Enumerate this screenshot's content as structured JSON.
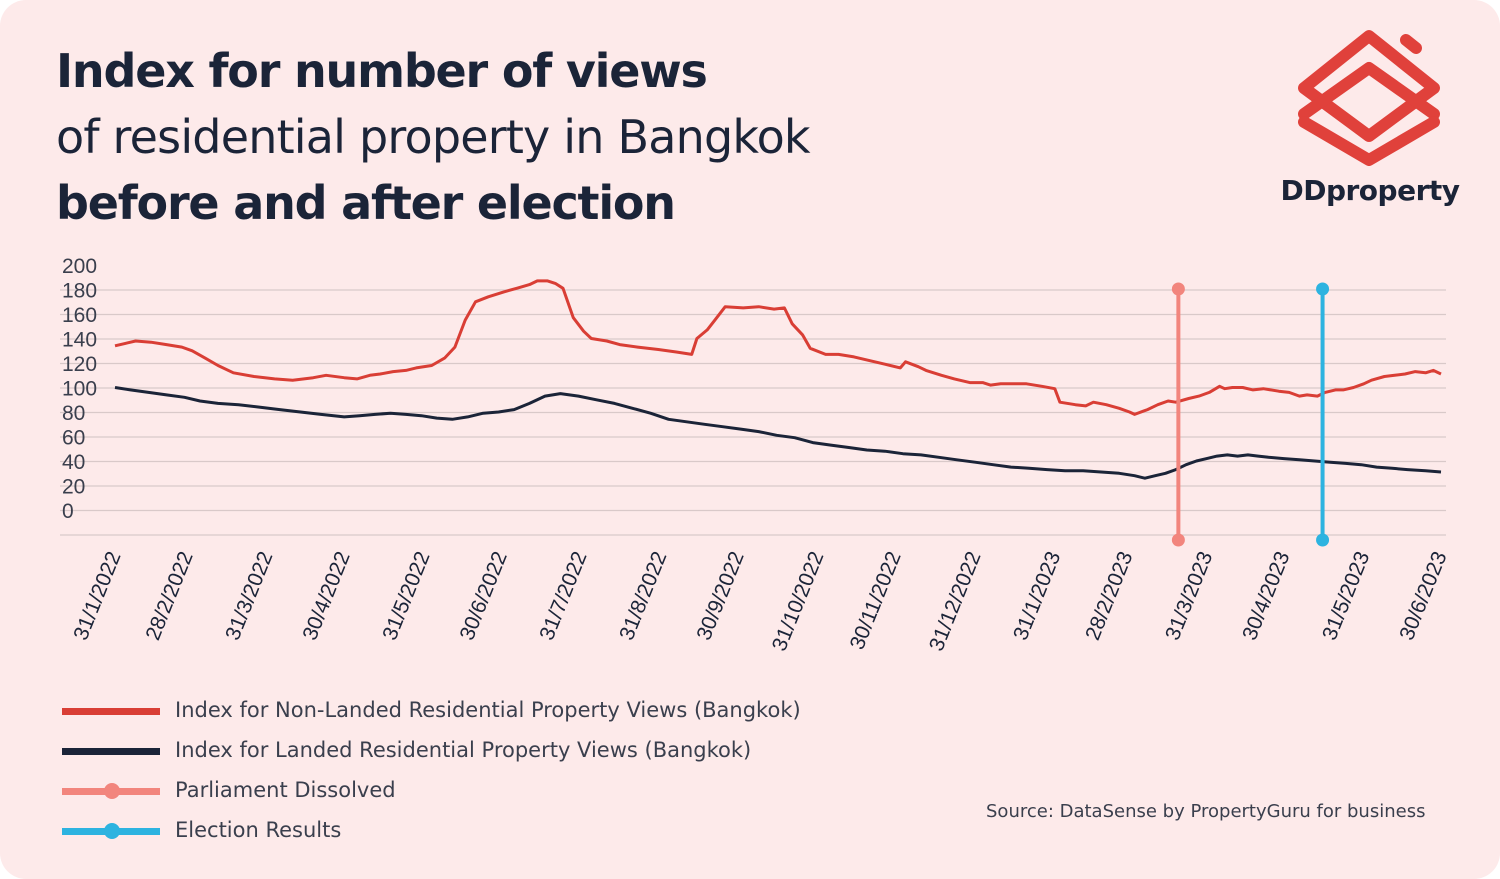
{
  "title": {
    "line1": "Index for number of views",
    "line2": "of residential property in Bangkok",
    "line3": "before and after election"
  },
  "logo": {
    "text": "DDproperty",
    "color": "#e0413b"
  },
  "source": "Source: DataSense by PropertyGuru for business",
  "colors": {
    "background": "#fdeaea",
    "non_landed": "#d93e35",
    "landed": "#1b2438",
    "parliament": "#f2857d",
    "election": "#2db3e0",
    "grid": "#d9c9c9"
  },
  "legend": [
    {
      "label": "Index for Non-Landed Residential Property Views (Bangkok)",
      "color": "#d93e35",
      "marker": false
    },
    {
      "label": "Index for Landed Residential Property Views (Bangkok)",
      "color": "#1b2438",
      "marker": false
    },
    {
      "label": "Parliament Dissolved",
      "color": "#f2857d",
      "marker": true
    },
    {
      "label": "Election Results",
      "color": "#2db3e0",
      "marker": true
    }
  ],
  "chart_data": {
    "type": "line",
    "title": "Index for number of views of residential property in Bangkok before and after election",
    "ylim": [
      0,
      200
    ],
    "yticks": [
      200,
      180,
      160,
      140,
      120,
      100,
      80,
      60,
      40,
      20,
      0
    ],
    "grid": true,
    "legend_position": "bottom-left",
    "x_range": [
      "31/1/2022",
      "30/6/2023"
    ],
    "x_ticks": [
      {
        "label": "31/1/2022",
        "date": "2022-01-31"
      },
      {
        "label": "28/2/2022",
        "date": "2022-02-28"
      },
      {
        "label": "31/3/2022",
        "date": "2022-03-31"
      },
      {
        "label": "30/4/2022",
        "date": "2022-04-30"
      },
      {
        "label": "31/5/2022",
        "date": "2022-05-31"
      },
      {
        "label": "30/6/2022",
        "date": "2022-06-30"
      },
      {
        "label": "31/7/2022",
        "date": "2022-07-31"
      },
      {
        "label": "31/8/2022",
        "date": "2022-08-31"
      },
      {
        "label": "30/9/2022",
        "date": "2022-09-30"
      },
      {
        "label": "31/10/2022",
        "date": "2022-10-31"
      },
      {
        "label": "30/11/2022",
        "date": "2022-11-30"
      },
      {
        "label": "31/12/2022",
        "date": "2022-12-31"
      },
      {
        "label": "31/1/2023",
        "date": "2023-01-31"
      },
      {
        "label": "28/2/2023",
        "date": "2023-02-28"
      },
      {
        "label": "31/3/2023",
        "date": "2023-03-31"
      },
      {
        "label": "30/4/2023",
        "date": "2023-04-30"
      },
      {
        "label": "31/5/2023",
        "date": "2023-05-31"
      },
      {
        "label": "30/6/2023",
        "date": "2023-06-30"
      }
    ],
    "events": [
      {
        "name": "Parliament Dissolved",
        "date": "2023-03-20",
        "color": "#f2857d"
      },
      {
        "name": "Election Results",
        "date": "2023-05-15",
        "color": "#2db3e0"
      }
    ],
    "series": [
      {
        "name": "Index for Non-Landed Residential Property Views (Bangkok)",
        "color": "#d93e35",
        "points": [
          [
            "2022-01-31",
            134
          ],
          [
            "2022-02-04",
            136
          ],
          [
            "2022-02-08",
            138
          ],
          [
            "2022-02-14",
            137
          ],
          [
            "2022-02-20",
            135
          ],
          [
            "2022-02-26",
            133
          ],
          [
            "2022-03-02",
            130
          ],
          [
            "2022-03-07",
            124
          ],
          [
            "2022-03-12",
            118
          ],
          [
            "2022-03-18",
            112
          ],
          [
            "2022-03-26",
            109
          ],
          [
            "2022-04-03",
            107
          ],
          [
            "2022-04-10",
            106
          ],
          [
            "2022-04-18",
            108
          ],
          [
            "2022-04-23",
            110
          ],
          [
            "2022-04-30",
            108
          ],
          [
            "2022-05-05",
            107
          ],
          [
            "2022-05-10",
            110
          ],
          [
            "2022-05-14",
            111
          ],
          [
            "2022-05-19",
            113
          ],
          [
            "2022-05-24",
            114
          ],
          [
            "2022-05-28",
            116
          ],
          [
            "2022-06-03",
            118
          ],
          [
            "2022-06-08",
            124
          ],
          [
            "2022-06-12",
            133
          ],
          [
            "2022-06-16",
            155
          ],
          [
            "2022-06-20",
            170
          ],
          [
            "2022-06-25",
            174
          ],
          [
            "2022-07-01",
            178
          ],
          [
            "2022-07-06",
            181
          ],
          [
            "2022-07-11",
            184
          ],
          [
            "2022-07-14",
            187
          ],
          [
            "2022-07-18",
            187
          ],
          [
            "2022-07-21",
            185
          ],
          [
            "2022-07-24",
            181
          ],
          [
            "2022-07-28",
            157
          ],
          [
            "2022-08-01",
            146
          ],
          [
            "2022-08-04",
            140
          ],
          [
            "2022-08-10",
            138
          ],
          [
            "2022-08-15",
            135
          ],
          [
            "2022-08-22",
            133
          ],
          [
            "2022-08-30",
            131
          ],
          [
            "2022-09-06",
            129
          ],
          [
            "2022-09-12",
            127
          ],
          [
            "2022-09-14",
            140
          ],
          [
            "2022-09-18",
            147
          ],
          [
            "2022-09-21",
            155
          ],
          [
            "2022-09-25",
            166
          ],
          [
            "2022-10-02",
            165
          ],
          [
            "2022-10-08",
            166
          ],
          [
            "2022-10-14",
            164
          ],
          [
            "2022-10-18",
            165
          ],
          [
            "2022-10-21",
            152
          ],
          [
            "2022-10-25",
            143
          ],
          [
            "2022-10-28",
            132
          ],
          [
            "2022-11-03",
            127
          ],
          [
            "2022-11-08",
            127
          ],
          [
            "2022-11-14",
            125
          ],
          [
            "2022-11-20",
            122
          ],
          [
            "2022-11-26",
            119
          ],
          [
            "2022-12-02",
            116
          ],
          [
            "2022-12-04",
            121
          ],
          [
            "2022-12-09",
            117
          ],
          [
            "2022-12-12",
            114
          ],
          [
            "2022-12-18",
            110
          ],
          [
            "2022-12-23",
            107
          ],
          [
            "2022-12-29",
            104
          ],
          [
            "2023-01-03",
            104
          ],
          [
            "2023-01-06",
            102
          ],
          [
            "2023-01-10",
            103
          ],
          [
            "2023-01-15",
            103
          ],
          [
            "2023-01-20",
            103
          ],
          [
            "2023-01-26",
            101
          ],
          [
            "2023-01-31",
            99
          ],
          [
            "2023-02-02",
            88
          ],
          [
            "2023-02-08",
            86
          ],
          [
            "2023-02-12",
            85
          ],
          [
            "2023-02-15",
            88
          ],
          [
            "2023-02-20",
            86
          ],
          [
            "2023-02-25",
            83
          ],
          [
            "2023-03-01",
            80
          ],
          [
            "2023-03-03",
            78
          ],
          [
            "2023-03-08",
            82
          ],
          [
            "2023-03-12",
            86
          ],
          [
            "2023-03-16",
            89
          ],
          [
            "2023-03-19",
            88
          ],
          [
            "2023-03-24",
            91
          ],
          [
            "2023-03-28",
            93
          ],
          [
            "2023-04-01",
            96
          ],
          [
            "2023-04-05",
            101
          ],
          [
            "2023-04-07",
            99
          ],
          [
            "2023-04-10",
            100
          ],
          [
            "2023-04-14",
            100
          ],
          [
            "2023-04-18",
            98
          ],
          [
            "2023-04-22",
            99
          ],
          [
            "2023-04-28",
            97
          ],
          [
            "2023-05-02",
            96
          ],
          [
            "2023-05-06",
            93
          ],
          [
            "2023-05-09",
            94
          ],
          [
            "2023-05-13",
            93
          ],
          [
            "2023-05-16",
            96
          ],
          [
            "2023-05-20",
            98
          ],
          [
            "2023-05-23",
            98
          ],
          [
            "2023-05-27",
            100
          ],
          [
            "2023-05-31",
            103
          ],
          [
            "2023-06-03",
            106
          ],
          [
            "2023-06-08",
            109
          ],
          [
            "2023-06-12",
            110
          ],
          [
            "2023-06-16",
            111
          ],
          [
            "2023-06-20",
            113
          ],
          [
            "2023-06-24",
            112
          ],
          [
            "2023-06-27",
            114
          ],
          [
            "2023-06-30",
            111
          ]
        ]
      },
      {
        "name": "Index for Landed Residential Property Views (Bangkok)",
        "color": "#1b2438",
        "points": [
          [
            "2022-01-31",
            100
          ],
          [
            "2022-02-06",
            98
          ],
          [
            "2022-02-13",
            96
          ],
          [
            "2022-02-20",
            94
          ],
          [
            "2022-02-27",
            92
          ],
          [
            "2022-03-05",
            89
          ],
          [
            "2022-03-12",
            87
          ],
          [
            "2022-03-20",
            86
          ],
          [
            "2022-03-28",
            84
          ],
          [
            "2022-04-05",
            82
          ],
          [
            "2022-04-13",
            80
          ],
          [
            "2022-04-21",
            78
          ],
          [
            "2022-04-30",
            76
          ],
          [
            "2022-05-06",
            77
          ],
          [
            "2022-05-12",
            78
          ],
          [
            "2022-05-18",
            79
          ],
          [
            "2022-05-24",
            78
          ],
          [
            "2022-05-30",
            77
          ],
          [
            "2022-06-05",
            75
          ],
          [
            "2022-06-11",
            74
          ],
          [
            "2022-06-17",
            76
          ],
          [
            "2022-06-23",
            79
          ],
          [
            "2022-06-29",
            80
          ],
          [
            "2022-07-05",
            82
          ],
          [
            "2022-07-11",
            87
          ],
          [
            "2022-07-17",
            93
          ],
          [
            "2022-07-23",
            95
          ],
          [
            "2022-07-30",
            93
          ],
          [
            "2022-08-06",
            90
          ],
          [
            "2022-08-13",
            87
          ],
          [
            "2022-08-20",
            83
          ],
          [
            "2022-08-27",
            79
          ],
          [
            "2022-09-03",
            74
          ],
          [
            "2022-09-10",
            72
          ],
          [
            "2022-09-17",
            70
          ],
          [
            "2022-09-24",
            68
          ],
          [
            "2022-10-01",
            66
          ],
          [
            "2022-10-08",
            64
          ],
          [
            "2022-10-15",
            61
          ],
          [
            "2022-10-22",
            59
          ],
          [
            "2022-10-29",
            55
          ],
          [
            "2022-11-05",
            53
          ],
          [
            "2022-11-12",
            51
          ],
          [
            "2022-11-19",
            49
          ],
          [
            "2022-11-26",
            48
          ],
          [
            "2022-12-03",
            46
          ],
          [
            "2022-12-10",
            45
          ],
          [
            "2022-12-17",
            43
          ],
          [
            "2022-12-24",
            41
          ],
          [
            "2022-12-31",
            39
          ],
          [
            "2023-01-07",
            37
          ],
          [
            "2023-01-14",
            35
          ],
          [
            "2023-01-21",
            34
          ],
          [
            "2023-01-28",
            33
          ],
          [
            "2023-02-04",
            32
          ],
          [
            "2023-02-11",
            32
          ],
          [
            "2023-02-18",
            31
          ],
          [
            "2023-02-25",
            30
          ],
          [
            "2023-03-03",
            28
          ],
          [
            "2023-03-07",
            26
          ],
          [
            "2023-03-11",
            28
          ],
          [
            "2023-03-15",
            30
          ],
          [
            "2023-03-19",
            33
          ],
          [
            "2023-03-23",
            37
          ],
          [
            "2023-03-27",
            40
          ],
          [
            "2023-03-31",
            42
          ],
          [
            "2023-04-04",
            44
          ],
          [
            "2023-04-08",
            45
          ],
          [
            "2023-04-12",
            44
          ],
          [
            "2023-04-16",
            45
          ],
          [
            "2023-04-20",
            44
          ],
          [
            "2023-04-24",
            43
          ],
          [
            "2023-04-30",
            42
          ],
          [
            "2023-05-06",
            41
          ],
          [
            "2023-05-12",
            40
          ],
          [
            "2023-05-18",
            39
          ],
          [
            "2023-05-24",
            38
          ],
          [
            "2023-05-30",
            37
          ],
          [
            "2023-06-05",
            35
          ],
          [
            "2023-06-11",
            34
          ],
          [
            "2023-06-17",
            33
          ],
          [
            "2023-06-24",
            32
          ],
          [
            "2023-06-30",
            31
          ]
        ]
      }
    ]
  }
}
